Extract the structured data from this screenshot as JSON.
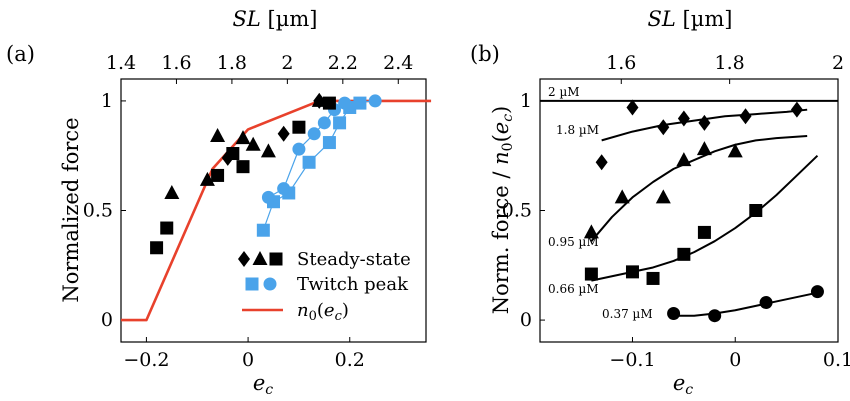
{
  "colors": {
    "black": "#000000",
    "blue": "#4aa3ea",
    "red": "#e8412c"
  },
  "chart_data": [
    {
      "type": "scatter",
      "panel_label": "(a)",
      "xlabel": "e_c",
      "ylabel": "Normalized force",
      "top_axis_label": "SL [µm]",
      "xlim": [
        -0.25,
        0.35
      ],
      "ylim": [
        -0.1,
        1.1
      ],
      "top_axis_range": [
        1.4,
        2.5
      ],
      "x_ticks": [
        "−0.2",
        "0",
        "0.2"
      ],
      "y_ticks": [
        "0",
        "0.5",
        "1"
      ],
      "top_ticks": [
        "1.4",
        "1.6",
        "1.8",
        "2",
        "2.2",
        "2.4"
      ],
      "series": [
        {
          "name": "Steady-state",
          "markers": [
            "diamond",
            "triangle",
            "square"
          ],
          "color": "#000000",
          "groups": [
            {
              "marker": "diamond",
              "points": [
                [
                  -0.04,
                  0.74
                ],
                [
                  0.07,
                  0.85
                ],
                [
                  0.14,
                  1.0
                ]
              ]
            },
            {
              "marker": "triangle",
              "points": [
                [
                  -0.15,
                  0.58
                ],
                [
                  -0.08,
                  0.64
                ],
                [
                  -0.06,
                  0.84
                ],
                [
                  -0.01,
                  0.83
                ],
                [
                  0.01,
                  0.8
                ],
                [
                  0.04,
                  0.77
                ],
                [
                  0.14,
                  1.0
                ]
              ]
            },
            {
              "marker": "square",
              "points": [
                [
                  -0.18,
                  0.33
                ],
                [
                  -0.16,
                  0.42
                ],
                [
                  -0.06,
                  0.66
                ],
                [
                  -0.03,
                  0.76
                ],
                [
                  -0.01,
                  0.7
                ],
                [
                  0.1,
                  0.88
                ],
                [
                  0.16,
                  0.99
                ]
              ]
            }
          ]
        },
        {
          "name": "Twitch peak",
          "markers": [
            "square",
            "circle"
          ],
          "color": "#4aa3ea",
          "groups": [
            {
              "marker": "square",
              "points": [
                [
                  0.03,
                  0.41
                ],
                [
                  0.05,
                  0.54
                ],
                [
                  0.08,
                  0.58
                ],
                [
                  0.12,
                  0.72
                ],
                [
                  0.16,
                  0.81
                ],
                [
                  0.18,
                  0.9
                ],
                [
                  0.2,
                  0.97
                ],
                [
                  0.22,
                  0.99
                ]
              ]
            },
            {
              "marker": "circle",
              "points": [
                [
                  0.04,
                  0.56
                ],
                [
                  0.07,
                  0.6
                ],
                [
                  0.1,
                  0.78
                ],
                [
                  0.13,
                  0.85
                ],
                [
                  0.15,
                  0.9
                ],
                [
                  0.17,
                  0.96
                ],
                [
                  0.19,
                  0.99
                ],
                [
                  0.25,
                  1.0
                ]
              ]
            }
          ]
        },
        {
          "name": "n0(e_c)",
          "type": "line",
          "color": "#e8412c",
          "x": [
            -0.26,
            -0.2,
            -0.07,
            0.0,
            0.14,
            0.36
          ],
          "y": [
            0.0,
            0.0,
            0.69,
            0.87,
            1.0,
            1.0
          ]
        }
      ],
      "legend": [
        "Steady-state",
        "Twitch peak",
        "n0(e_c)"
      ],
      "legend_position": "bottom-right"
    },
    {
      "type": "scatter",
      "panel_label": "(b)",
      "xlabel": "e_c",
      "ylabel": "Norm. force / n0(e_c)",
      "top_axis_label": "SL [µm]",
      "xlim": [
        -0.19,
        0.1
      ],
      "ylim": [
        -0.1,
        1.1
      ],
      "top_axis_range": [
        1.45,
        2.0
      ],
      "x_ticks": [
        "−0.1",
        "0",
        "0.1"
      ],
      "y_ticks": [
        "0",
        "0.5",
        "1"
      ],
      "top_ticks": [
        "1.6",
        "1.8",
        "2"
      ],
      "series": [
        {
          "name": "2 µM",
          "marker": "none",
          "points": [],
          "fit_x": [
            -0.19,
            0.1
          ],
          "fit_y": [
            1.0,
            1.0
          ]
        },
        {
          "name": "1.8 µM",
          "marker": "diamond",
          "points": [
            [
              -0.1,
              0.97
            ],
            [
              -0.13,
              0.72
            ],
            [
              -0.07,
              0.88
            ],
            [
              -0.05,
              0.92
            ],
            [
              -0.03,
              0.9
            ],
            [
              0.01,
              0.93
            ],
            [
              0.06,
              0.96
            ]
          ],
          "fit_x": [
            -0.13,
            -0.1,
            -0.07,
            -0.04,
            -0.01,
            0.02,
            0.05,
            0.07
          ],
          "fit_y": [
            0.82,
            0.86,
            0.89,
            0.91,
            0.93,
            0.94,
            0.95,
            0.96
          ]
        },
        {
          "name": "0.95 µM",
          "marker": "triangle",
          "points": [
            [
              -0.14,
              0.4
            ],
            [
              -0.11,
              0.56
            ],
            [
              -0.07,
              0.56
            ],
            [
              -0.05,
              0.73
            ],
            [
              -0.03,
              0.78
            ],
            [
              0.0,
              0.77
            ]
          ],
          "fit_x": [
            -0.14,
            -0.12,
            -0.1,
            -0.08,
            -0.06,
            -0.04,
            -0.02,
            0.0,
            0.02,
            0.04,
            0.07
          ],
          "fit_y": [
            0.36,
            0.47,
            0.56,
            0.63,
            0.69,
            0.73,
            0.77,
            0.8,
            0.82,
            0.83,
            0.84
          ]
        },
        {
          "name": "0.66 µM",
          "marker": "square",
          "points": [
            [
              -0.14,
              0.21
            ],
            [
              -0.1,
              0.22
            ],
            [
              -0.08,
              0.19
            ],
            [
              -0.05,
              0.3
            ],
            [
              -0.03,
              0.4
            ],
            [
              0.02,
              0.5
            ]
          ],
          "fit_x": [
            -0.14,
            -0.12,
            -0.1,
            -0.08,
            -0.06,
            -0.04,
            -0.02,
            0.0,
            0.02,
            0.04,
            0.06,
            0.08
          ],
          "fit_y": [
            0.18,
            0.2,
            0.22,
            0.24,
            0.27,
            0.31,
            0.36,
            0.42,
            0.49,
            0.57,
            0.66,
            0.75
          ]
        },
        {
          "name": "0.37 µM",
          "marker": "circle",
          "points": [
            [
              -0.06,
              0.03
            ],
            [
              -0.02,
              0.02
            ],
            [
              0.03,
              0.08
            ],
            [
              0.08,
              0.13
            ]
          ],
          "fit_x": [
            -0.06,
            -0.04,
            -0.02,
            0.0,
            0.02,
            0.04,
            0.06,
            0.08
          ],
          "fit_y": [
            0.02,
            0.02,
            0.03,
            0.045,
            0.065,
            0.085,
            0.105,
            0.125
          ]
        }
      ],
      "curve_labels": [
        "2 µM",
        "1.8 µM",
        "0.95 µM",
        "0.66 µM",
        "0.37 µM"
      ]
    }
  ]
}
